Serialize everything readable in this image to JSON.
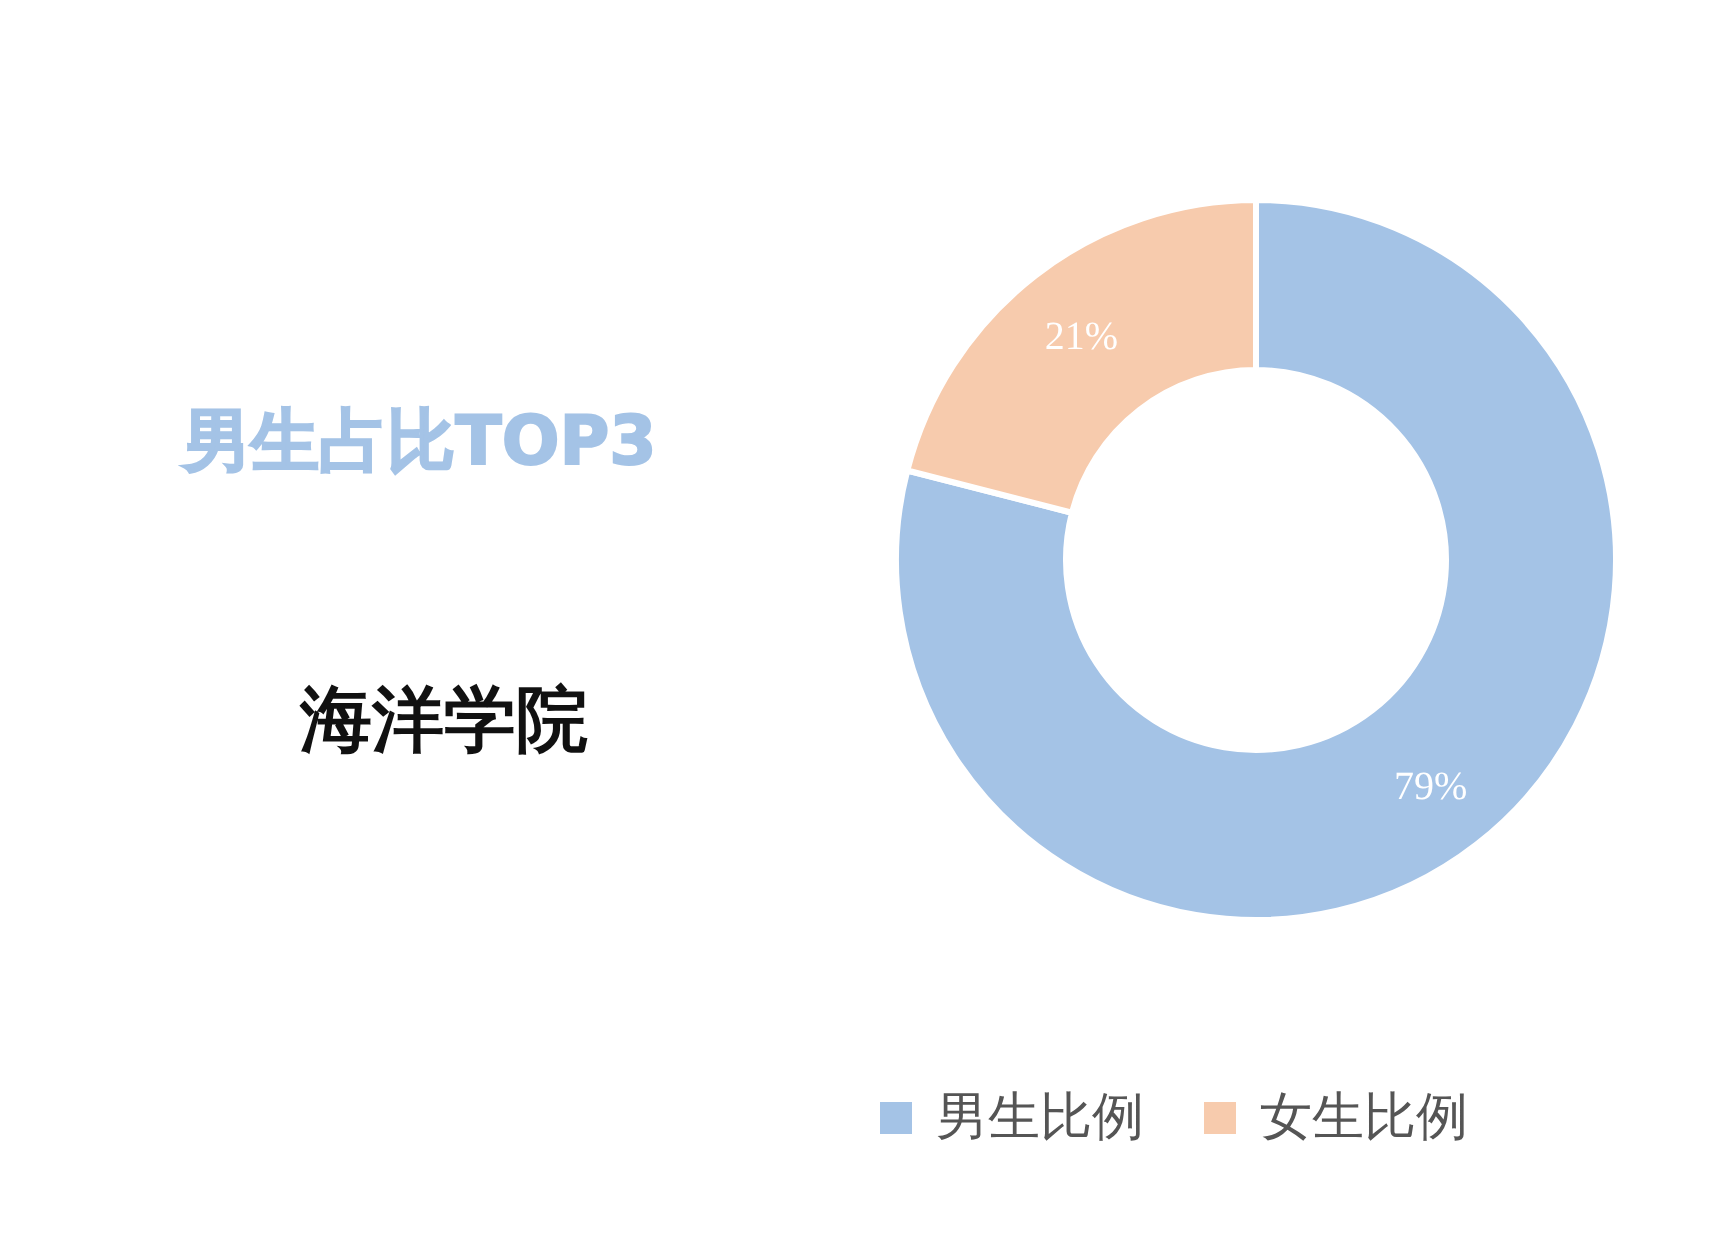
{
  "chart_data": {
    "type": "donut",
    "title": "男生占比TOP3",
    "subtitle": "海洋学院",
    "categories": [
      "男生比例",
      "女生比例"
    ],
    "values": [
      79,
      21
    ],
    "colors": [
      "#a4c3e6",
      "#f7cbad"
    ],
    "value_labels": [
      "79%",
      "21%"
    ],
    "legend": "bottom"
  }
}
